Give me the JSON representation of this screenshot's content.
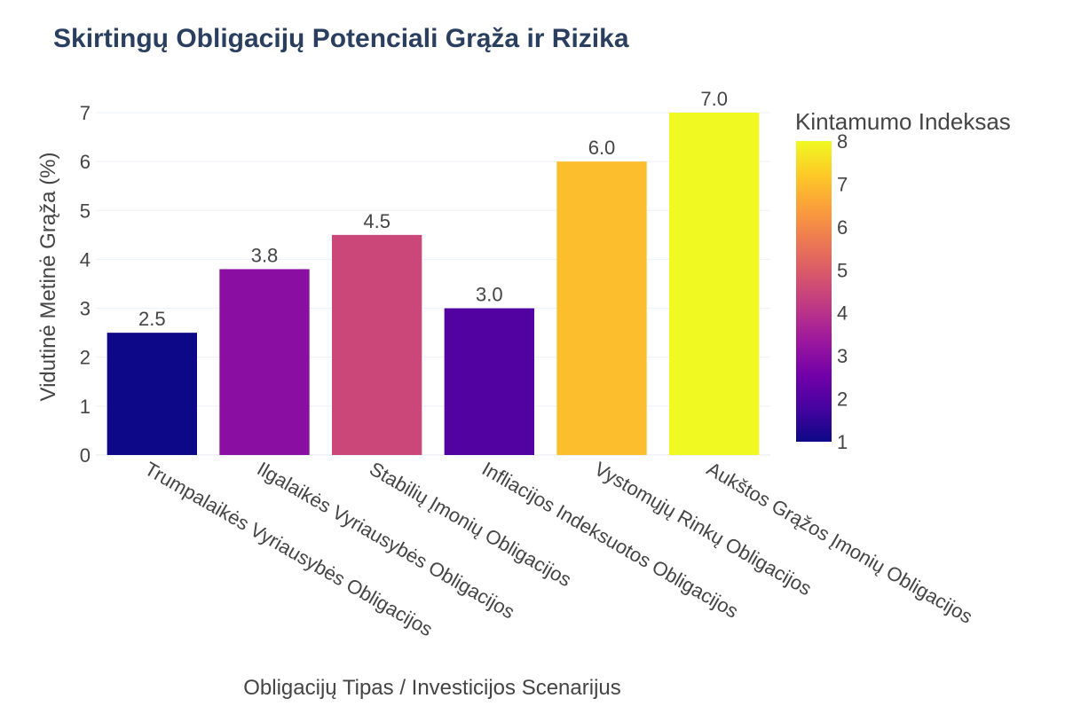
{
  "chart_data": {
    "type": "bar",
    "title": "Skirtingų Obligacijų Potenciali Grąža ir Rizika",
    "xlabel": "Obligacijų Tipas / Investicijos Scenarijus",
    "ylabel": "Vidutinė Metinė Grąža (%)",
    "categories": [
      "Trumpalaikės Vyriausybės Obligacijos",
      "Ilgalaikės Vyriausybės Obligacijos",
      "Stabilių Įmonių Obligacijos",
      "Infliacijos Indeksuotos Obligacijos",
      "Vystomųjų Rinkų Obligacijos",
      "Aukštos Grąžos Įmonių Obligacijos"
    ],
    "values": [
      2.5,
      3.8,
      4.5,
      3.0,
      6.0,
      7.0
    ],
    "value_labels": [
      "2.5",
      "3.8",
      "4.5",
      "3.0",
      "6.0",
      "7.0"
    ],
    "color_values": [
      1,
      3,
      4.5,
      2,
      7,
      8
    ],
    "ylim": [
      0,
      7
    ],
    "yticks": [
      0,
      1,
      2,
      3,
      4,
      5,
      6,
      7
    ],
    "grid": true,
    "colorbar": {
      "title": "Kintamumo Indeksas",
      "range": [
        1,
        8
      ],
      "ticks": [
        1,
        2,
        3,
        4,
        5,
        6,
        7,
        8
      ],
      "scale": [
        "#0d0887",
        "#46039f",
        "#7201a8",
        "#9c179e",
        "#bd3786",
        "#d8576b",
        "#ed7953",
        "#fb9f3a",
        "#fdca26",
        "#f0f921"
      ]
    },
    "colors": {
      "text": "#2a3f5f",
      "axis": "#444444",
      "grid": "#ebf0f8"
    }
  }
}
